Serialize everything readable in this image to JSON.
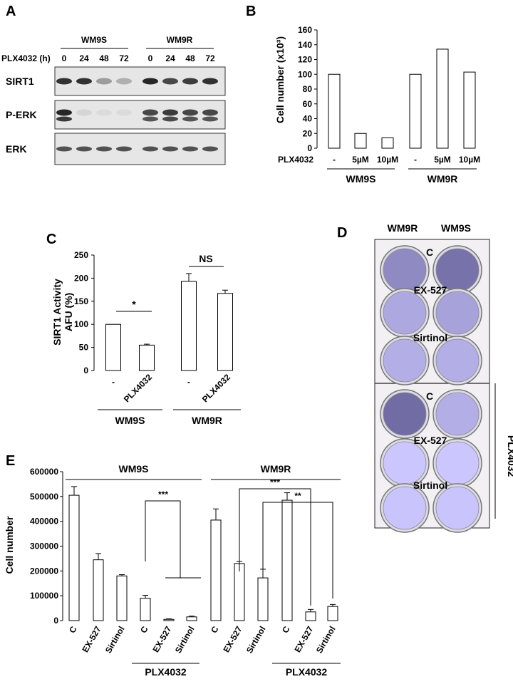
{
  "panels": {
    "A": {
      "letter": "A",
      "groups": [
        "WM9S",
        "WM9R"
      ],
      "treatment_label": "PLX4032 (h)",
      "timepoints": [
        "0",
        "24",
        "48",
        "72",
        "0",
        "24",
        "48",
        "72"
      ],
      "rows": [
        {
          "label": "SIRT1",
          "intensity": [
            0.85,
            0.85,
            0.35,
            0.25,
            0.9,
            0.75,
            0.8,
            0.85
          ]
        },
        {
          "label": "P-ERK",
          "intensity": [
            0.9,
            0.08,
            0.05,
            0.05,
            0.75,
            0.8,
            0.75,
            0.75
          ]
        },
        {
          "label": "ERK",
          "intensity": [
            0.7,
            0.7,
            0.7,
            0.7,
            0.7,
            0.7,
            0.7,
            0.7
          ]
        }
      ]
    },
    "B": {
      "letter": "B"
    },
    "C": {
      "letter": "C"
    },
    "D": {
      "letter": "D",
      "columns": [
        "WM9R",
        "WM9S"
      ],
      "row_labels": [
        "C",
        "EX-527",
        "Sirtinol",
        "C",
        "EX-527",
        "Sirtinol"
      ],
      "side_label": "PLX4032",
      "stain": [
        [
          0.6,
          0.8
        ],
        [
          0.35,
          0.4
        ],
        [
          0.3,
          0.3
        ],
        [
          0.85,
          0.3
        ],
        [
          0.1,
          0.1
        ],
        [
          0.12,
          0.12
        ]
      ]
    },
    "E": {
      "letter": "E"
    }
  },
  "chart_data": [
    {
      "id": "B",
      "type": "bar",
      "categories": [
        "-",
        "5µM",
        "10µM",
        "-",
        "5µM",
        "10µM"
      ],
      "values": [
        100,
        20,
        14,
        100,
        134,
        103
      ],
      "ylabel": "Cell number (x10³)",
      "ylim": [
        0,
        160
      ],
      "yticks": [
        0,
        20,
        40,
        60,
        80,
        100,
        120,
        140,
        160
      ],
      "row_label": "PLX4032",
      "groups": [
        {
          "label": "WM9S",
          "members": [
            0,
            1,
            2
          ]
        },
        {
          "label": "WM9R",
          "members": [
            3,
            4,
            5
          ]
        }
      ]
    },
    {
      "id": "C",
      "type": "bar",
      "categories": [
        "-",
        "PLX4032",
        "-",
        "PLX4032"
      ],
      "values": [
        100,
        55,
        193,
        167
      ],
      "errors": [
        0,
        2,
        17,
        7
      ],
      "ylabel": "SIRT1 Activity AFU (%)",
      "ylabel_lines": [
        "SIRT1 Activity",
        "AFU (%)"
      ],
      "ylim": [
        0,
        250
      ],
      "yticks": [
        0,
        50,
        100,
        150,
        200,
        250
      ],
      "groups": [
        {
          "label": "WM9S",
          "members": [
            0,
            1
          ]
        },
        {
          "label": "WM9R",
          "members": [
            2,
            3
          ]
        }
      ],
      "annotations": [
        {
          "text": "*",
          "between": [
            0,
            1
          ]
        },
        {
          "text": "NS",
          "between": [
            2,
            3
          ]
        }
      ]
    },
    {
      "id": "E",
      "type": "bar",
      "categories": [
        "C",
        "EX-527",
        "Sirtinol",
        "C",
        "EX-527",
        "Sirtinol",
        "C",
        "EX-527",
        "Sirtinol",
        "C",
        "EX-527",
        "Sirtinol"
      ],
      "values": [
        505000,
        245000,
        180000,
        90000,
        5000,
        15000,
        405000,
        230000,
        172000,
        485000,
        35000,
        57000
      ],
      "errors": [
        35000,
        25000,
        5000,
        12000,
        2000,
        3000,
        45000,
        8000,
        35000,
        30000,
        10000,
        8000
      ],
      "ylabel": "Cell number",
      "ylim": [
        0,
        600000
      ],
      "yticks": [
        "0",
        "100000",
        "200000",
        "300000",
        "400000",
        "500000",
        "600000"
      ],
      "groups": [
        {
          "label": "WM9S",
          "members": [
            0,
            1,
            2,
            3,
            4,
            5
          ]
        },
        {
          "label": "WM9R",
          "members": [
            6,
            7,
            8,
            9,
            10,
            11
          ]
        }
      ],
      "treatment_groups": [
        {
          "label": "PLX4032",
          "members": [
            3,
            4,
            5
          ]
        },
        {
          "label": "PLX4032",
          "members": [
            9,
            10,
            11
          ]
        }
      ],
      "annotations": [
        {
          "text": "***",
          "from": 3,
          "to_pair": [
            4,
            5
          ]
        },
        {
          "text": "***",
          "from": 7,
          "to": 10
        },
        {
          "text": "**",
          "from": 8,
          "to": 11
        }
      ]
    }
  ]
}
